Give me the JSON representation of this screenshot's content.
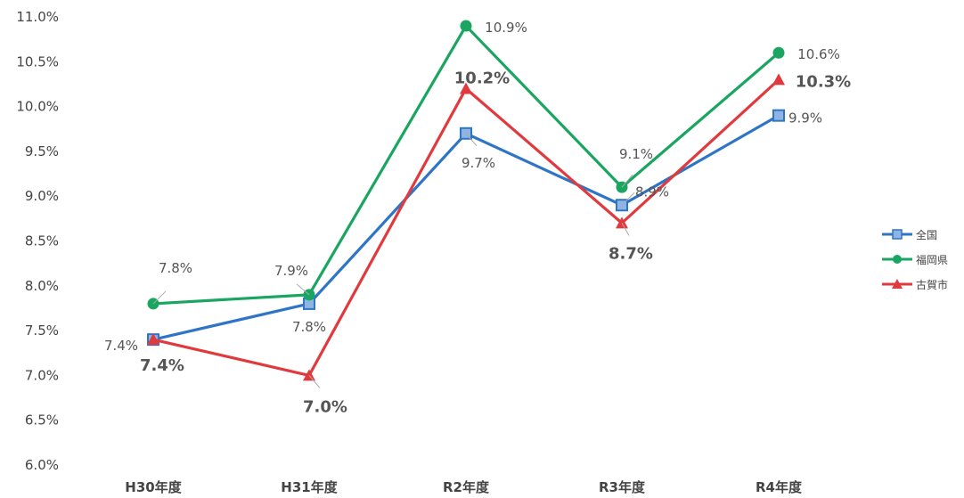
{
  "chart_data": {
    "type": "line",
    "categories": [
      "H30年度",
      "H31年度",
      "R2年度",
      "R3年度",
      "R4年度"
    ],
    "ylim": [
      6.0,
      11.0
    ],
    "yticks": [
      "6.0%",
      "6.5%",
      "7.0%",
      "7.5%",
      "8.0%",
      "8.5%",
      "9.0%",
      "9.5%",
      "10.0%",
      "10.5%",
      "11.0%"
    ],
    "grid": false,
    "legend_position": "right",
    "series": [
      {
        "name": "全国",
        "color": "#2e75c6",
        "marker": "square",
        "values": [
          7.4,
          7.8,
          9.7,
          8.9,
          9.9
        ],
        "labels": [
          "7.4%",
          "7.8%",
          "9.7%",
          "8.9%",
          "9.9%"
        ],
        "bold_labels": false
      },
      {
        "name": "福岡県",
        "color": "#1aa660",
        "marker": "circle",
        "values": [
          7.8,
          7.9,
          10.9,
          9.1,
          10.6
        ],
        "labels": [
          "7.8%",
          "7.9%",
          "10.9%",
          "9.1%",
          "10.6%"
        ],
        "bold_labels": false
      },
      {
        "name": "古賀市",
        "color": "#e03a3e",
        "marker": "triangle",
        "values": [
          7.4,
          7.0,
          10.2,
          8.7,
          10.3
        ],
        "labels": [
          "7.4%",
          "7.0%",
          "10.2%",
          "8.7%",
          "10.3%"
        ],
        "bold_labels": true
      }
    ]
  }
}
